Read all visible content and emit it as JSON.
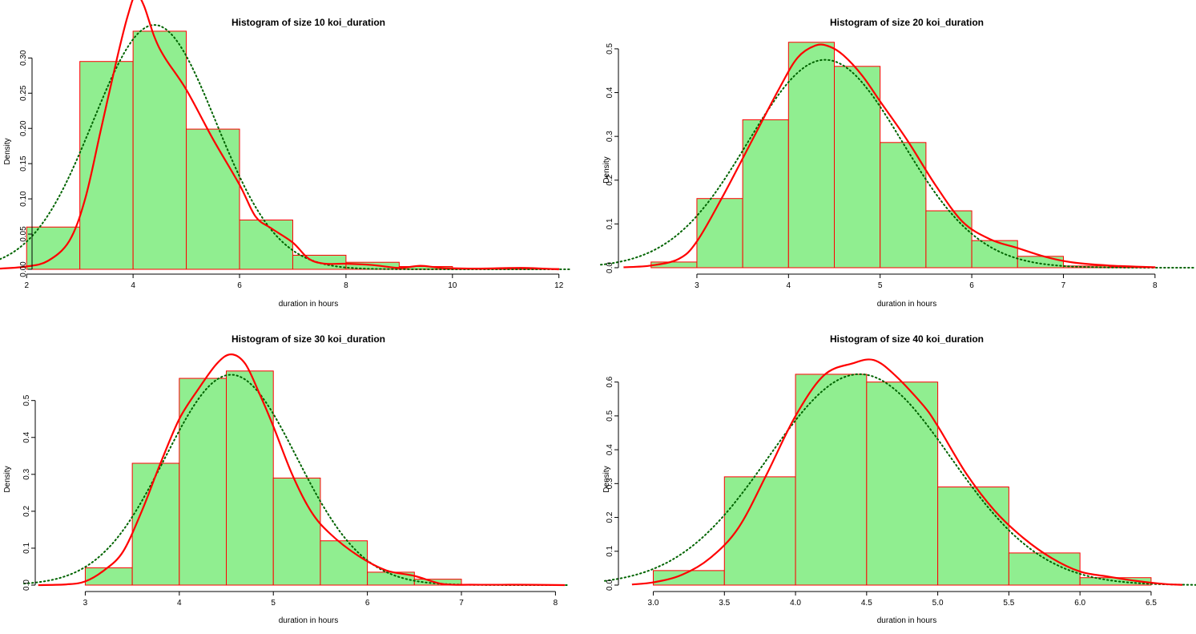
{
  "colors": {
    "bar_fill": "#90ee90",
    "bar_border": "#ff0000",
    "kde_line": "#ff0000",
    "normal_line": "#006400"
  },
  "chart_data": [
    {
      "type": "bar",
      "title": "Histogram of size 10 koi_duration",
      "xlabel": "duration in hours",
      "ylabel": "Density",
      "xlim": [
        1.5,
        12.2
      ],
      "ylim": [
        0,
        0.38
      ],
      "xticks": [
        {
          "v": 2,
          "label": "2"
        },
        {
          "v": 4,
          "label": "4"
        },
        {
          "v": 6,
          "label": "6"
        },
        {
          "v": 8,
          "label": "8"
        },
        {
          "v": 10,
          "label": "10"
        },
        {
          "v": 12,
          "label": "12"
        }
      ],
      "yticks": [
        {
          "v": 0,
          "label": "0.00"
        },
        {
          "v": 0.05,
          "label": "0.05"
        },
        {
          "v": 0.1,
          "label": "0.10"
        },
        {
          "v": 0.15,
          "label": "0.15"
        },
        {
          "v": 0.2,
          "label": "0.20"
        },
        {
          "v": 0.25,
          "label": "0.25"
        },
        {
          "v": 0.3,
          "label": "0.30"
        }
      ],
      "bins": [
        [
          2,
          3,
          0.06
        ],
        [
          3,
          4,
          0.295
        ],
        [
          4,
          5,
          0.338
        ],
        [
          5,
          6,
          0.199
        ],
        [
          6,
          7,
          0.07
        ],
        [
          7,
          8,
          0.02
        ],
        [
          8,
          9,
          0.01
        ],
        [
          9,
          10,
          0.004
        ],
        [
          10,
          11,
          0.001
        ],
        [
          11,
          12,
          0.001
        ]
      ],
      "normal": {
        "mean": 4.4,
        "sd": 1.15
      },
      "kde_curve": [
        [
          1.5,
          0.001
        ],
        [
          2.0,
          0.004
        ],
        [
          2.4,
          0.012
        ],
        [
          2.8,
          0.04
        ],
        [
          3.1,
          0.1
        ],
        [
          3.4,
          0.2
        ],
        [
          3.7,
          0.3
        ],
        [
          3.9,
          0.36
        ],
        [
          4.05,
          0.39
        ],
        [
          4.2,
          0.375
        ],
        [
          4.4,
          0.33
        ],
        [
          4.6,
          0.3
        ],
        [
          5.0,
          0.255
        ],
        [
          5.5,
          0.185
        ],
        [
          6.0,
          0.12
        ],
        [
          6.3,
          0.075
        ],
        [
          6.6,
          0.058
        ],
        [
          7.0,
          0.038
        ],
        [
          7.3,
          0.015
        ],
        [
          7.6,
          0.008
        ],
        [
          8.0,
          0.008
        ],
        [
          8.5,
          0.006
        ],
        [
          9.0,
          0.002
        ],
        [
          9.4,
          0.005
        ],
        [
          9.8,
          0.002
        ],
        [
          10.5,
          0.001
        ],
        [
          11.3,
          0.002
        ],
        [
          12.0,
          0.0
        ]
      ]
    },
    {
      "type": "bar",
      "title": "Histogram of size 20 koi_duration",
      "xlabel": "duration in hours",
      "ylabel": "Density",
      "xlim": [
        2.1,
        8.15
      ],
      "ylim": [
        0,
        0.52
      ],
      "xticks": [
        {
          "v": 3,
          "label": "3"
        },
        {
          "v": 4,
          "label": "4"
        },
        {
          "v": 5,
          "label": "5"
        },
        {
          "v": 6,
          "label": "6"
        },
        {
          "v": 7,
          "label": "7"
        },
        {
          "v": 8,
          "label": "8"
        }
      ],
      "yticks": [
        {
          "v": 0,
          "label": "0.0"
        },
        {
          "v": 0.1,
          "label": "0.1"
        },
        {
          "v": 0.2,
          "label": "0.2"
        },
        {
          "v": 0.3,
          "label": "0.3"
        },
        {
          "v": 0.4,
          "label": "0.4"
        },
        {
          "v": 0.5,
          "label": "0.5"
        }
      ],
      "bins": [
        [
          2.5,
          3.0,
          0.013
        ],
        [
          3.0,
          3.5,
          0.158
        ],
        [
          3.5,
          4.0,
          0.338
        ],
        [
          4.0,
          4.5,
          0.515
        ],
        [
          4.5,
          5.0,
          0.46
        ],
        [
          5.0,
          5.5,
          0.286
        ],
        [
          5.5,
          6.0,
          0.13
        ],
        [
          6.0,
          6.5,
          0.062
        ],
        [
          6.5,
          7.0,
          0.026
        ],
        [
          7.0,
          7.5,
          0.004
        ],
        [
          7.5,
          8.0,
          0.002
        ]
      ],
      "normal": {
        "mean": 4.4,
        "sd": 0.84
      },
      "kde_curve": [
        [
          2.2,
          0.001
        ],
        [
          2.5,
          0.005
        ],
        [
          2.8,
          0.02
        ],
        [
          3.0,
          0.06
        ],
        [
          3.3,
          0.17
        ],
        [
          3.6,
          0.29
        ],
        [
          3.9,
          0.41
        ],
        [
          4.1,
          0.48
        ],
        [
          4.3,
          0.508
        ],
        [
          4.45,
          0.505
        ],
        [
          4.6,
          0.485
        ],
        [
          4.8,
          0.44
        ],
        [
          5.0,
          0.38
        ],
        [
          5.3,
          0.29
        ],
        [
          5.6,
          0.19
        ],
        [
          5.9,
          0.105
        ],
        [
          6.2,
          0.065
        ],
        [
          6.5,
          0.045
        ],
        [
          6.8,
          0.025
        ],
        [
          7.1,
          0.012
        ],
        [
          7.5,
          0.005
        ],
        [
          8.0,
          0.001
        ]
      ]
    },
    {
      "type": "bar",
      "title": "Histogram of size 30 koi_duration",
      "xlabel": "duration in hours",
      "ylabel": "Density",
      "xlim": [
        2.4,
        8.15
      ],
      "ylim": [
        0,
        0.66
      ],
      "xticks": [
        {
          "v": 3,
          "label": "3"
        },
        {
          "v": 4,
          "label": "4"
        },
        {
          "v": 5,
          "label": "5"
        },
        {
          "v": 6,
          "label": "6"
        },
        {
          "v": 7,
          "label": "7"
        },
        {
          "v": 8,
          "label": "8"
        }
      ],
      "yticks": [
        {
          "v": 0,
          "label": "0.0"
        },
        {
          "v": 0.1,
          "label": "0.1"
        },
        {
          "v": 0.2,
          "label": "0.2"
        },
        {
          "v": 0.3,
          "label": "0.3"
        },
        {
          "v": 0.4,
          "label": "0.4"
        },
        {
          "v": 0.5,
          "label": "0.5"
        }
      ],
      "bins": [
        [
          3.0,
          3.5,
          0.047
        ],
        [
          3.5,
          4.0,
          0.33
        ],
        [
          4.0,
          4.5,
          0.56
        ],
        [
          4.5,
          5.0,
          0.58
        ],
        [
          5.0,
          5.5,
          0.29
        ],
        [
          5.5,
          6.0,
          0.12
        ],
        [
          6.0,
          6.5,
          0.035
        ],
        [
          6.5,
          7.0,
          0.016
        ]
      ],
      "normal": {
        "mean": 4.55,
        "sd": 0.7
      },
      "kde_curve": [
        [
          2.5,
          0.0
        ],
        [
          2.8,
          0.002
        ],
        [
          3.0,
          0.01
        ],
        [
          3.2,
          0.04
        ],
        [
          3.4,
          0.09
        ],
        [
          3.6,
          0.2
        ],
        [
          3.8,
          0.33
        ],
        [
          4.0,
          0.45
        ],
        [
          4.2,
          0.53
        ],
        [
          4.4,
          0.6
        ],
        [
          4.55,
          0.625
        ],
        [
          4.7,
          0.6
        ],
        [
          4.85,
          0.52
        ],
        [
          5.0,
          0.43
        ],
        [
          5.2,
          0.3
        ],
        [
          5.4,
          0.2
        ],
        [
          5.6,
          0.14
        ],
        [
          5.9,
          0.08
        ],
        [
          6.2,
          0.04
        ],
        [
          6.5,
          0.025
        ],
        [
          6.8,
          0.003
        ],
        [
          7.1,
          0.001
        ],
        [
          7.6,
          0.001
        ],
        [
          8.1,
          0.0
        ]
      ]
    },
    {
      "type": "bar",
      "title": "Histogram of size 40 koi_duration",
      "xlabel": "duration in hours",
      "ylabel": "Density",
      "xlim": [
        2.8,
        6.72
      ],
      "ylim": [
        0,
        0.72
      ],
      "xticks": [
        {
          "v": 3.0,
          "label": "3.0"
        },
        {
          "v": 3.5,
          "label": "3.5"
        },
        {
          "v": 4.0,
          "label": "4.0"
        },
        {
          "v": 4.5,
          "label": "4.5"
        },
        {
          "v": 5.0,
          "label": "5.0"
        },
        {
          "v": 5.5,
          "label": "5.5"
        },
        {
          "v": 6.0,
          "label": "6.0"
        },
        {
          "v": 6.5,
          "label": "6.5"
        }
      ],
      "yticks": [
        {
          "v": 0,
          "label": "0.0"
        },
        {
          "v": 0.1,
          "label": "0.1"
        },
        {
          "v": 0.2,
          "label": "0.2"
        },
        {
          "v": 0.3,
          "label": "0.3"
        },
        {
          "v": 0.4,
          "label": "0.4"
        },
        {
          "v": 0.5,
          "label": "0.5"
        },
        {
          "v": 0.6,
          "label": "0.6"
        }
      ],
      "bins": [
        [
          3.0,
          3.5,
          0.043
        ],
        [
          3.5,
          4.0,
          0.32
        ],
        [
          4.0,
          4.5,
          0.623
        ],
        [
          4.5,
          5.0,
          0.6
        ],
        [
          5.0,
          5.5,
          0.29
        ],
        [
          5.5,
          6.0,
          0.095
        ],
        [
          6.0,
          6.5,
          0.022
        ]
      ],
      "normal": {
        "mean": 4.45,
        "sd": 0.64
      },
      "kde_curve": [
        [
          2.85,
          0.002
        ],
        [
          3.0,
          0.008
        ],
        [
          3.2,
          0.03
        ],
        [
          3.4,
          0.08
        ],
        [
          3.6,
          0.17
        ],
        [
          3.8,
          0.33
        ],
        [
          4.0,
          0.5
        ],
        [
          4.2,
          0.62
        ],
        [
          4.4,
          0.655
        ],
        [
          4.55,
          0.665
        ],
        [
          4.7,
          0.62
        ],
        [
          4.9,
          0.53
        ],
        [
          5.0,
          0.47
        ],
        [
          5.2,
          0.33
        ],
        [
          5.4,
          0.22
        ],
        [
          5.6,
          0.14
        ],
        [
          5.8,
          0.08
        ],
        [
          6.0,
          0.04
        ],
        [
          6.2,
          0.025
        ],
        [
          6.4,
          0.012
        ],
        [
          6.6,
          0.003
        ],
        [
          6.72,
          0.001
        ]
      ]
    }
  ]
}
